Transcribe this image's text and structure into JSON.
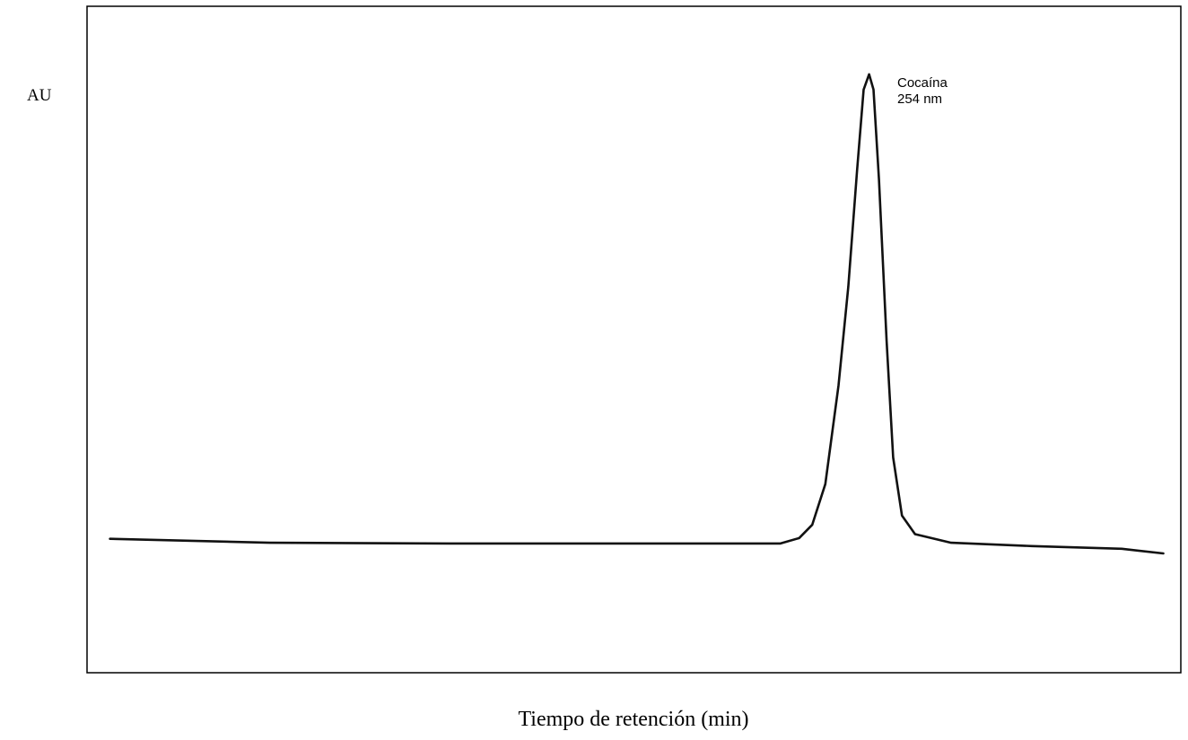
{
  "chart_data": {
    "type": "line",
    "x_label": "Tiempo de retención (min)",
    "y_label": "AU",
    "annotation": [
      "Cocaína",
      "254 nm"
    ],
    "xlim": [
      0,
      100
    ],
    "ylim": [
      0,
      100
    ],
    "color": "#111111",
    "x": [
      2.1,
      16.7,
      33.1,
      49.5,
      63.4,
      65.1,
      66.3,
      67.5,
      68.7,
      69.6,
      70.4,
      71.0,
      71.5,
      71.9,
      72.4,
      73.1,
      73.7,
      74.5,
      75.7,
      79.0,
      86.4,
      94.6,
      98.4
    ],
    "values": [
      20.1,
      19.5,
      19.4,
      19.4,
      19.4,
      20.2,
      22.2,
      28.3,
      43.1,
      57.9,
      75.4,
      87.5,
      89.8,
      87.5,
      74.0,
      49.8,
      32.3,
      23.6,
      20.8,
      19.5,
      19.0,
      18.6,
      17.9
    ]
  }
}
